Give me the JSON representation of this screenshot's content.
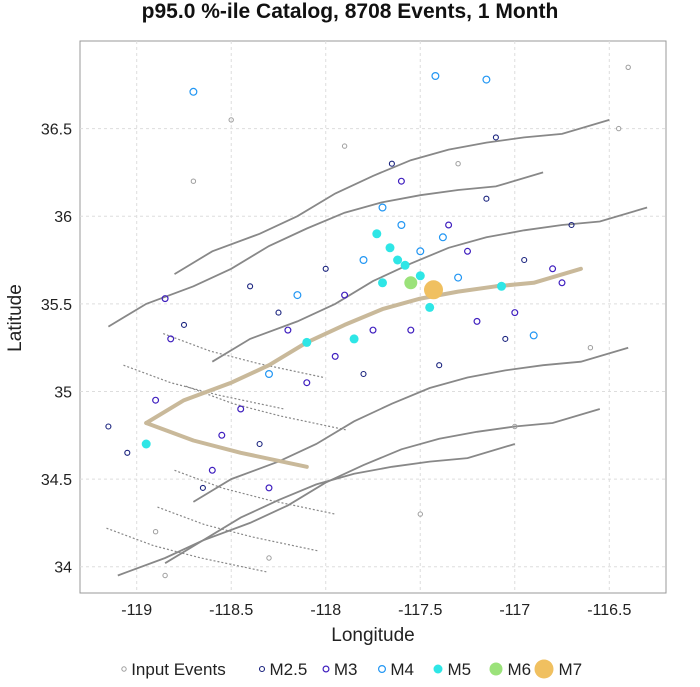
{
  "chart_data": {
    "type": "scatter",
    "title": "p95.0 %-ile Catalog, 8708 Events, 1 Month",
    "xlabel": "Longitude",
    "ylabel": "Latitude",
    "xlim": [
      -119.3,
      -116.2
    ],
    "ylim": [
      33.85,
      37.0
    ],
    "xticks": [
      -119,
      -118.5,
      -118,
      -117.5,
      -117,
      -116.5
    ],
    "yticks": [
      34,
      34.5,
      35,
      35.5,
      36,
      36.5
    ],
    "xtick_labels": [
      "-119",
      "-118.5",
      "-118",
      "-117.5",
      "-117",
      "-116.5"
    ],
    "ytick_labels": [
      "34",
      "34.5",
      "35",
      "35.5",
      "36",
      "36.5"
    ],
    "grid": true,
    "legend_position": "bottom",
    "colors": {
      "faults": "#888888",
      "rupture": "#c9b99a",
      "input": "#9e9e9e",
      "m25": "#1a237e",
      "m3": "#3f1fbf",
      "m4": "#2196f3",
      "m5": "#2ee6e6",
      "m6": "#9be27a",
      "m7": "#f0c060"
    },
    "legend": [
      {
        "label": "Input Events",
        "symbol": "input"
      },
      {
        "label": "M2.5",
        "symbol": "m25"
      },
      {
        "label": "M3",
        "symbol": "m3"
      },
      {
        "label": "M4",
        "symbol": "m4"
      },
      {
        "label": "M5",
        "symbol": "m5"
      },
      {
        "label": "M6",
        "symbol": "m6"
      },
      {
        "label": "M7",
        "symbol": "m7"
      }
    ],
    "rupture_trace": [
      [
        -118.95,
        34.82
      ],
      [
        -118.75,
        34.95
      ],
      [
        -118.5,
        35.05
      ],
      [
        -118.3,
        35.15
      ],
      [
        -118.1,
        35.28
      ],
      [
        -117.9,
        35.38
      ],
      [
        -117.7,
        35.47
      ],
      [
        -117.5,
        35.53
      ],
      [
        -117.3,
        35.57
      ],
      [
        -117.1,
        35.6
      ],
      [
        -116.9,
        35.62
      ],
      [
        -116.65,
        35.7
      ]
    ],
    "rupture_trace_2": [
      [
        -118.95,
        34.82
      ],
      [
        -118.7,
        34.72
      ],
      [
        -118.45,
        34.65
      ],
      [
        -118.1,
        34.57
      ]
    ],
    "series": [
      {
        "name": "M7",
        "symbol": "m7",
        "points": [
          [
            -117.43,
            35.58
          ]
        ]
      },
      {
        "name": "M6",
        "symbol": "m6",
        "points": [
          [
            -117.55,
            35.62
          ]
        ]
      },
      {
        "name": "M5",
        "symbol": "m5",
        "points": [
          [
            -117.62,
            35.75
          ],
          [
            -117.58,
            35.72
          ],
          [
            -117.66,
            35.82
          ],
          [
            -117.5,
            35.66
          ],
          [
            -117.73,
            35.9
          ],
          [
            -117.85,
            35.3
          ],
          [
            -118.95,
            34.7
          ],
          [
            -118.1,
            35.28
          ],
          [
            -117.45,
            35.48
          ],
          [
            -117.07,
            35.6
          ],
          [
            -117.7,
            35.62
          ]
        ]
      },
      {
        "name": "M4",
        "symbol": "m4",
        "points": [
          [
            -118.7,
            36.71
          ],
          [
            -117.15,
            36.78
          ],
          [
            -117.42,
            36.8
          ],
          [
            -116.9,
            35.32
          ],
          [
            -117.38,
            35.88
          ],
          [
            -117.7,
            36.05
          ],
          [
            -117.6,
            35.95
          ],
          [
            -118.15,
            35.55
          ],
          [
            -117.3,
            35.65
          ],
          [
            -117.5,
            35.8
          ],
          [
            -117.8,
            35.75
          ],
          [
            -118.3,
            35.1
          ]
        ]
      },
      {
        "name": "M3",
        "symbol": "m3",
        "points": [
          [
            -118.85,
            35.53
          ],
          [
            -118.82,
            35.3
          ],
          [
            -118.45,
            34.9
          ],
          [
            -118.2,
            35.35
          ],
          [
            -117.95,
            35.2
          ],
          [
            -117.0,
            35.45
          ],
          [
            -116.8,
            35.7
          ],
          [
            -117.6,
            36.2
          ],
          [
            -117.2,
            35.4
          ],
          [
            -118.6,
            34.55
          ],
          [
            -118.3,
            34.45
          ],
          [
            -117.9,
            35.55
          ],
          [
            -117.75,
            35.35
          ],
          [
            -117.25,
            35.8
          ],
          [
            -118.1,
            35.05
          ],
          [
            -118.55,
            34.75
          ],
          [
            -116.75,
            35.62
          ],
          [
            -117.55,
            35.35
          ],
          [
            -118.9,
            34.95
          ],
          [
            -117.35,
            35.95
          ]
        ]
      },
      {
        "name": "M2.5",
        "symbol": "m25",
        "points": [
          [
            -119.05,
            34.65
          ],
          [
            -118.75,
            35.38
          ],
          [
            -118.4,
            35.6
          ],
          [
            -118.0,
            35.7
          ],
          [
            -117.15,
            36.1
          ],
          [
            -116.95,
            35.75
          ],
          [
            -117.05,
            35.3
          ],
          [
            -118.65,
            34.45
          ],
          [
            -118.25,
            35.45
          ],
          [
            -117.8,
            35.1
          ],
          [
            -117.4,
            35.15
          ],
          [
            -116.7,
            35.95
          ],
          [
            -118.35,
            34.7
          ],
          [
            -117.65,
            36.3
          ],
          [
            -117.1,
            36.45
          ],
          [
            -119.15,
            34.8
          ]
        ]
      },
      {
        "name": "Input Events",
        "symbol": "input",
        "points": [
          [
            -118.5,
            36.55
          ],
          [
            -117.9,
            36.4
          ],
          [
            -117.3,
            36.3
          ],
          [
            -116.4,
            36.85
          ],
          [
            -116.45,
            36.5
          ],
          [
            -118.9,
            34.2
          ],
          [
            -118.3,
            34.05
          ],
          [
            -117.5,
            34.3
          ],
          [
            -116.6,
            35.25
          ],
          [
            -118.85,
            33.95
          ],
          [
            -117.0,
            34.8
          ],
          [
            -118.7,
            36.2
          ]
        ]
      }
    ]
  }
}
